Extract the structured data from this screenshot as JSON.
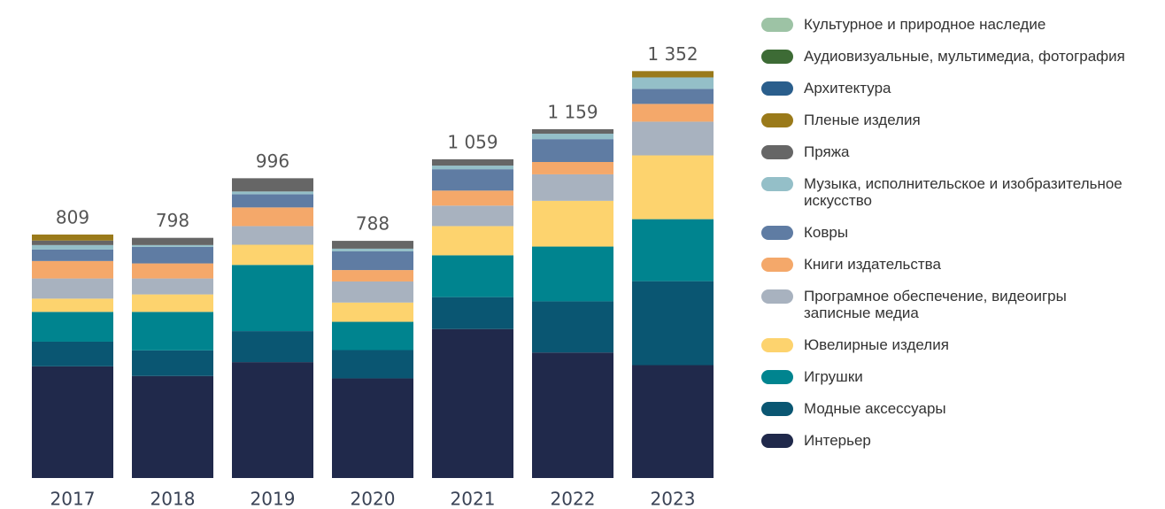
{
  "chart_data": {
    "type": "stacked-bar",
    "categories": [
      "2017",
      "2018",
      "2019",
      "2020",
      "2021",
      "2022",
      "2023"
    ],
    "series": [
      {
        "name": "Интерьер",
        "color": "#20294b",
        "values": [
          371,
          339,
          385,
          331,
          495,
          417,
          375
        ]
      },
      {
        "name": "Модные аксессуары",
        "color": "#0a5672",
        "values": [
          82,
          85,
          103,
          94,
          106,
          170,
          279
        ]
      },
      {
        "name": "Игрушки",
        "color": "#00848f",
        "values": [
          99,
          128,
          220,
          94,
          139,
          182,
          206
        ]
      },
      {
        "name": "Ювелирные изделия",
        "color": "#fdd36e",
        "values": [
          44,
          58,
          67,
          64,
          97,
          152,
          212
        ]
      },
      {
        "name": "Програмное обеспечение, видеоигры записные медиа",
        "color": "#a8b2bf",
        "values": [
          67,
          53,
          62,
          70,
          68,
          88,
          112
        ]
      },
      {
        "name": "Книги издательства",
        "color": "#f4a86a",
        "values": [
          58,
          50,
          62,
          38,
          50,
          41,
          59
        ]
      },
      {
        "name": "Ковры",
        "color": "#5f7ca3",
        "values": [
          38,
          55,
          44,
          62,
          71,
          76,
          50
        ]
      },
      {
        "name": "Музыка, исполнительское и изобразительное искусство",
        "color": "#94bfc8",
        "values": [
          15,
          6,
          9,
          9,
          12,
          18,
          38
        ]
      },
      {
        "name": "Пряжа",
        "color": "#666666",
        "values": [
          15,
          24,
          44,
          26,
          21,
          15,
          0
        ]
      },
      {
        "name": "Пленые изделия",
        "color": "#9a7a1a",
        "values": [
          20,
          0,
          0,
          0,
          0,
          0,
          21
        ]
      },
      {
        "name": "Архитектура",
        "color": "#2a5e8c",
        "values": [
          0,
          0,
          0,
          0,
          0,
          0,
          0
        ]
      },
      {
        "name": "Аудиовизуальные, мультимедиа, фотография",
        "color": "#3d6b35",
        "values": [
          0,
          0,
          0,
          0,
          0,
          0,
          0
        ]
      },
      {
        "name": "Культурное и природное наследие",
        "color": "#9dc3a5",
        "values": [
          0,
          0,
          0,
          0,
          0,
          0,
          0
        ]
      }
    ],
    "totals": {
      "values": [
        809,
        798,
        996,
        788,
        1059,
        1159,
        1352
      ],
      "value_labels": [
        "809",
        "798",
        "996",
        "788",
        "1 059",
        "1 159",
        "1 352"
      ]
    }
  }
}
